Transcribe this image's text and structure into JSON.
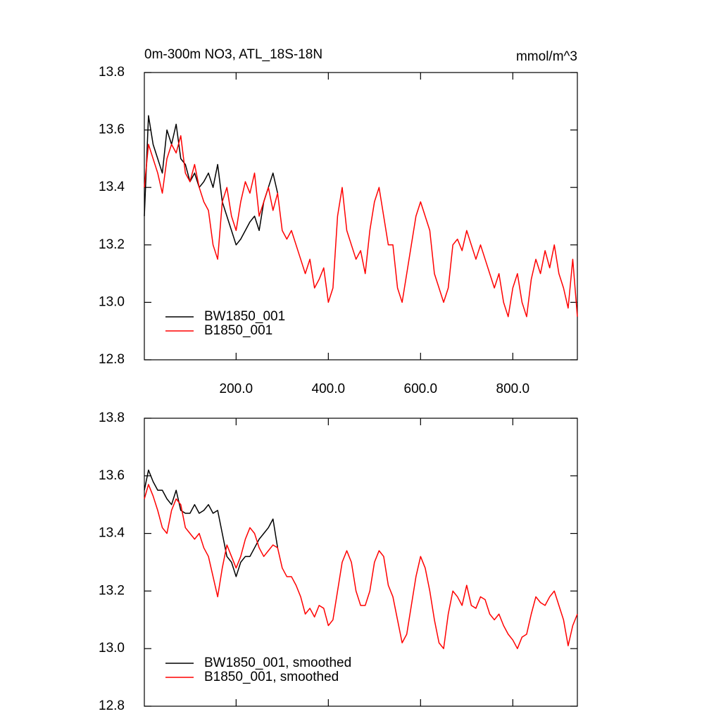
{
  "chart_data": [
    {
      "type": "line",
      "title": "0m-300m NO3, ATL_18S-18N",
      "units": "mmol/m^3",
      "x": [
        1,
        10,
        20,
        30,
        40,
        50,
        60,
        70,
        80,
        90,
        100,
        110,
        120,
        130,
        140,
        150,
        160,
        170,
        180,
        190,
        200,
        210,
        220,
        230,
        240,
        250,
        260,
        270,
        280,
        290,
        300,
        310,
        320,
        330,
        340,
        350,
        360,
        370,
        380,
        390,
        400,
        410,
        420,
        430,
        440,
        450,
        460,
        470,
        480,
        490,
        500,
        510,
        520,
        530,
        540,
        550,
        560,
        570,
        580,
        590,
        600,
        610,
        620,
        630,
        640,
        650,
        660,
        670,
        680,
        690,
        700,
        710,
        720,
        730,
        740,
        750,
        760,
        770,
        780,
        790,
        800,
        810,
        820,
        830,
        840,
        850,
        860,
        870,
        880,
        890,
        900,
        910,
        920,
        930,
        940
      ],
      "series": [
        {
          "name": "BW1850_001",
          "color": "#000000",
          "values": [
            13.3,
            13.65,
            13.55,
            13.5,
            13.45,
            13.6,
            13.55,
            13.62,
            13.5,
            13.48,
            13.42,
            13.45,
            13.4,
            13.42,
            13.45,
            13.4,
            13.48,
            13.35,
            13.3,
            13.25,
            13.2,
            13.22,
            13.25,
            13.28,
            13.3,
            13.25,
            13.35,
            13.4,
            13.45,
            13.38,
            null,
            null,
            null,
            null,
            null,
            null,
            null,
            null,
            null,
            null,
            null,
            null,
            null,
            null,
            null,
            null,
            null,
            null,
            null,
            null,
            null,
            null,
            null,
            null,
            null,
            null,
            null,
            null,
            null,
            null,
            null,
            null,
            null,
            null,
            null,
            null,
            null,
            null,
            null,
            null,
            null,
            null,
            null,
            null,
            null,
            null,
            null,
            null,
            null,
            null,
            null,
            null,
            null,
            null,
            null,
            null,
            null,
            null,
            null,
            null,
            null,
            null,
            null,
            null,
            null
          ]
        },
        {
          "name": "B1850_001",
          "color": "#ff0000",
          "values": [
            13.4,
            13.55,
            13.5,
            13.45,
            13.38,
            13.5,
            13.55,
            13.52,
            13.58,
            13.45,
            13.42,
            13.48,
            13.4,
            13.35,
            13.32,
            13.2,
            13.15,
            13.35,
            13.4,
            13.3,
            13.25,
            13.35,
            13.42,
            13.38,
            13.45,
            13.3,
            13.35,
            13.4,
            13.32,
            13.38,
            13.25,
            13.22,
            13.25,
            13.2,
            13.15,
            13.1,
            13.15,
            13.05,
            13.08,
            13.12,
            13.0,
            13.05,
            13.3,
            13.4,
            13.25,
            13.2,
            13.15,
            13.18,
            13.1,
            13.25,
            13.35,
            13.4,
            13.3,
            13.2,
            13.2,
            13.05,
            13.0,
            13.1,
            13.2,
            13.3,
            13.35,
            13.3,
            13.25,
            13.1,
            13.05,
            13.0,
            13.05,
            13.2,
            13.22,
            13.18,
            13.25,
            13.2,
            13.15,
            13.2,
            13.15,
            13.1,
            13.05,
            13.1,
            13.0,
            12.95,
            13.05,
            13.1,
            13.0,
            12.95,
            13.08,
            13.15,
            13.1,
            13.18,
            13.12,
            13.2,
            13.1,
            13.05,
            12.98,
            13.15,
            12.95
          ]
        }
      ],
      "xlim": [
        1,
        940
      ],
      "xticks": [
        {
          "value": 200,
          "label": "200.0"
        },
        {
          "value": 400,
          "label": "400.0"
        },
        {
          "value": 600,
          "label": "600.0"
        },
        {
          "value": 800,
          "label": "800.0"
        }
      ],
      "ylim": [
        12.8,
        13.8
      ],
      "yticks": [
        12.8,
        {
          "value": 13,
          "label": "13.0"
        },
        13.2,
        13.4,
        13.6,
        13.8
      ],
      "legend": "lower left"
    },
    {
      "type": "line",
      "x": [
        1,
        10,
        20,
        30,
        40,
        50,
        60,
        70,
        80,
        90,
        100,
        110,
        120,
        130,
        140,
        150,
        160,
        170,
        180,
        190,
        200,
        210,
        220,
        230,
        240,
        250,
        260,
        270,
        280,
        290,
        300,
        310,
        320,
        330,
        340,
        350,
        360,
        370,
        380,
        390,
        400,
        410,
        420,
        430,
        440,
        450,
        460,
        470,
        480,
        490,
        500,
        510,
        520,
        530,
        540,
        550,
        560,
        570,
        580,
        590,
        600,
        610,
        620,
        630,
        640,
        650,
        660,
        670,
        680,
        690,
        700,
        710,
        720,
        730,
        740,
        750,
        760,
        770,
        780,
        790,
        800,
        810,
        820,
        830,
        840,
        850,
        860,
        870,
        880,
        890,
        900,
        910,
        920,
        930,
        940
      ],
      "series": [
        {
          "name": "BW1850_001, smoothed",
          "color": "#000000",
          "values": [
            13.55,
            13.62,
            13.58,
            13.55,
            13.55,
            13.52,
            13.5,
            13.55,
            13.48,
            13.47,
            13.47,
            13.5,
            13.47,
            13.48,
            13.5,
            13.47,
            13.48,
            13.4,
            13.32,
            13.3,
            13.25,
            13.3,
            13.32,
            13.32,
            13.35,
            13.38,
            13.4,
            13.42,
            13.45,
            13.35,
            null,
            null,
            null,
            null,
            null,
            null,
            null,
            null,
            null,
            null,
            null,
            null,
            null,
            null,
            null,
            null,
            null,
            null,
            null,
            null,
            null,
            null,
            null,
            null,
            null,
            null,
            null,
            null,
            null,
            null,
            null,
            null,
            null,
            null,
            null,
            null,
            null,
            null,
            null,
            null,
            null,
            null,
            null,
            null,
            null,
            null,
            null,
            null,
            null,
            null,
            null,
            null,
            null,
            null,
            null,
            null,
            null,
            null,
            null,
            null,
            null,
            null,
            null,
            null,
            null
          ]
        },
        {
          "name": "B1850_001, smoothed",
          "color": "#ff0000",
          "values": [
            13.52,
            13.57,
            13.53,
            13.48,
            13.42,
            13.4,
            13.48,
            13.52,
            13.5,
            13.42,
            13.4,
            13.38,
            13.4,
            13.35,
            13.32,
            13.25,
            13.18,
            13.28,
            13.36,
            13.32,
            13.28,
            13.32,
            13.38,
            13.42,
            13.4,
            13.35,
            13.32,
            13.34,
            13.36,
            13.35,
            13.28,
            13.25,
            13.25,
            13.22,
            13.18,
            13.12,
            13.14,
            13.11,
            13.15,
            13.14,
            13.08,
            13.1,
            13.2,
            13.3,
            13.34,
            13.3,
            13.2,
            13.15,
            13.15,
            13.2,
            13.3,
            13.34,
            13.32,
            13.22,
            13.18,
            13.1,
            13.02,
            13.05,
            13.15,
            13.25,
            13.32,
            13.28,
            13.2,
            13.1,
            13.02,
            13.0,
            13.12,
            13.2,
            13.18,
            13.15,
            13.22,
            13.15,
            13.14,
            13.18,
            13.17,
            13.12,
            13.1,
            13.12,
            13.08,
            13.05,
            13.03,
            13.0,
            13.04,
            13.05,
            13.12,
            13.18,
            13.16,
            13.15,
            13.18,
            13.2,
            13.15,
            13.1,
            13.01,
            13.08,
            13.12
          ]
        }
      ],
      "xlim": [
        1,
        940
      ],
      "ylim": [
        12.8,
        13.8
      ],
      "yticks": [
        12.8,
        {
          "value": 13,
          "label": "13.0"
        },
        13.2,
        13.4,
        13.6,
        13.8
      ],
      "legend": "lower left"
    }
  ]
}
